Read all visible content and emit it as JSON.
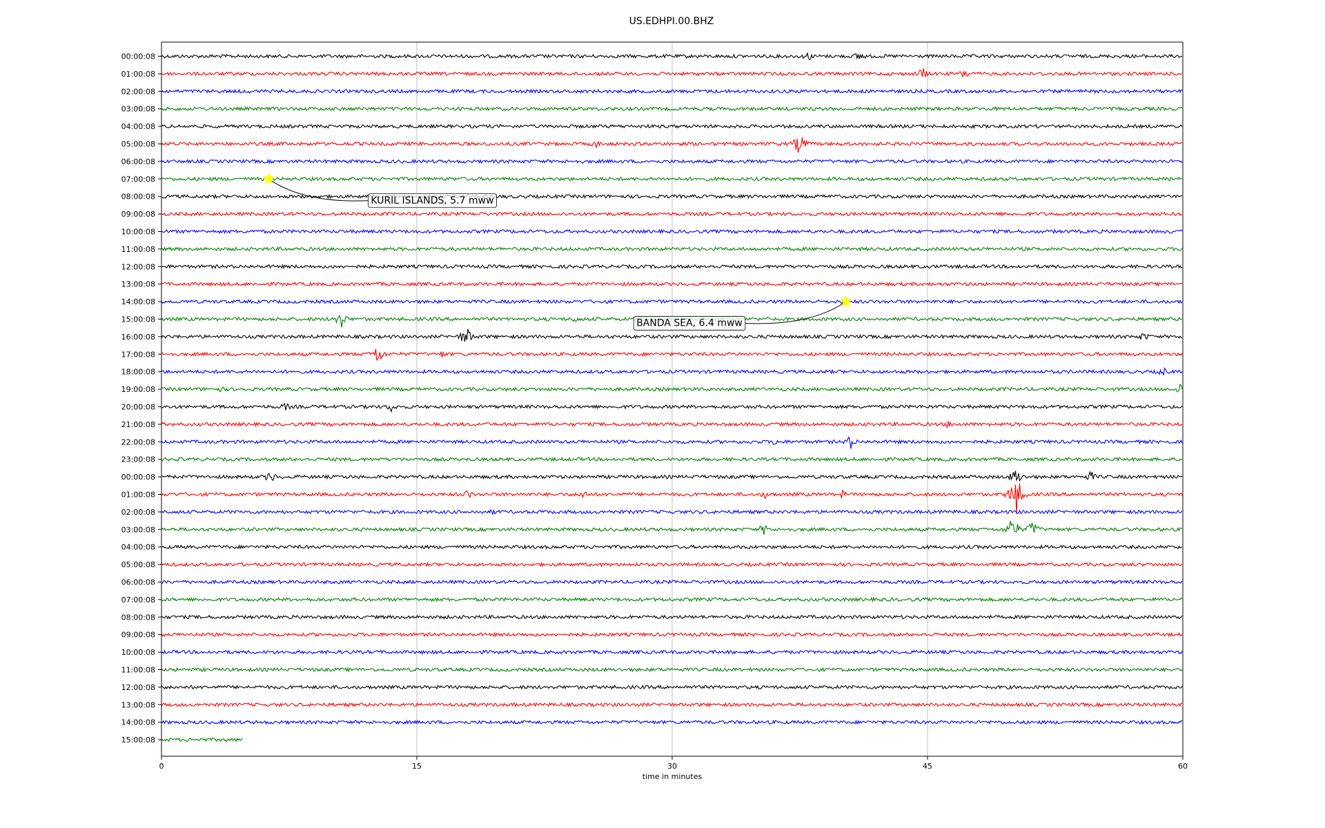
{
  "chart_data": {
    "type": "line",
    "title": "US.EDHPI.00.BHZ",
    "xlabel": "time in minutes",
    "xlim": [
      0,
      60
    ],
    "x_ticks": [
      0,
      15,
      30,
      45,
      60
    ],
    "grid": "vertical",
    "row_colors": [
      "#000000",
      "#ff0000",
      "#0000ff",
      "#008000"
    ],
    "row_labels": [
      "00:00:08",
      "01:00:08",
      "02:00:08",
      "03:00:08",
      "04:00:08",
      "05:00:08",
      "06:00:08",
      "07:00:08",
      "08:00:08",
      "09:00:08",
      "10:00:08",
      "11:00:08",
      "12:00:08",
      "13:00:08",
      "14:00:08",
      "15:00:08",
      "16:00:08",
      "17:00:08",
      "18:00:08",
      "19:00:08",
      "20:00:08",
      "21:00:08",
      "22:00:08",
      "23:00:08",
      "00:00:08",
      "01:00:08",
      "02:00:08",
      "03:00:08",
      "04:00:08",
      "05:00:08",
      "06:00:08",
      "07:00:08",
      "08:00:08",
      "09:00:08",
      "10:00:08",
      "11:00:08",
      "12:00:08",
      "13:00:08",
      "14:00:08",
      "15:00:08"
    ],
    "last_row_end_minute": 4.8,
    "bursts": [
      {
        "row": 0,
        "minute": 38.0,
        "amp": 8
      },
      {
        "row": 0,
        "minute": 41.0,
        "amp": 9
      },
      {
        "row": 1,
        "minute": 44.7,
        "amp": 10
      },
      {
        "row": 1,
        "minute": 47.2,
        "amp": 9
      },
      {
        "row": 1,
        "minute": 51.8,
        "amp": 4
      },
      {
        "row": 5,
        "minute": 25.5,
        "amp": 7
      },
      {
        "row": 5,
        "minute": 37.5,
        "amp": 18
      },
      {
        "row": 15,
        "minute": 10.5,
        "amp": 16
      },
      {
        "row": 15,
        "minute": 24.3,
        "amp": 6
      },
      {
        "row": 16,
        "minute": 17.9,
        "amp": 16
      },
      {
        "row": 16,
        "minute": 57.7,
        "amp": 8
      },
      {
        "row": 17,
        "minute": 12.7,
        "amp": 16
      },
      {
        "row": 17,
        "minute": 16.5,
        "amp": 6
      },
      {
        "row": 18,
        "minute": 58.8,
        "amp": 8
      },
      {
        "row": 19,
        "minute": 3.5,
        "amp": 5
      },
      {
        "row": 19,
        "minute": 59.9,
        "amp": 12
      },
      {
        "row": 20,
        "minute": 13.5,
        "amp": 8
      },
      {
        "row": 20,
        "minute": 7.3,
        "amp": 7
      },
      {
        "row": 21,
        "minute": 46.2,
        "amp": 6
      },
      {
        "row": 22,
        "minute": 40.5,
        "amp": 11
      },
      {
        "row": 22,
        "minute": 36.0,
        "amp": 6
      },
      {
        "row": 24,
        "minute": 6.4,
        "amp": 10
      },
      {
        "row": 24,
        "minute": 50.2,
        "amp": 14
      },
      {
        "row": 24,
        "minute": 54.6,
        "amp": 9
      },
      {
        "row": 25,
        "minute": 50.2,
        "amp": 32
      },
      {
        "row": 25,
        "minute": 18.0,
        "amp": 8
      },
      {
        "row": 25,
        "minute": 24.8,
        "amp": 8
      },
      {
        "row": 25,
        "minute": 35.5,
        "amp": 7
      },
      {
        "row": 25,
        "minute": 40.0,
        "amp": 7
      },
      {
        "row": 26,
        "minute": 19.5,
        "amp": 5
      },
      {
        "row": 27,
        "minute": 50.0,
        "amp": 20
      },
      {
        "row": 27,
        "minute": 35.4,
        "amp": 9
      },
      {
        "row": 27,
        "minute": 51.2,
        "amp": 14
      }
    ],
    "events": [
      {
        "row": 7,
        "minute": 6.3,
        "label": "KURIL ISLANDS, 5.7 mww",
        "label_row": 8.2,
        "label_minute": 12.3
      },
      {
        "row": 14,
        "minute": 40.2,
        "label": "BANDA SEA, 6.4 mww",
        "label_row": 15.2,
        "label_minute": 27.9
      }
    ]
  }
}
